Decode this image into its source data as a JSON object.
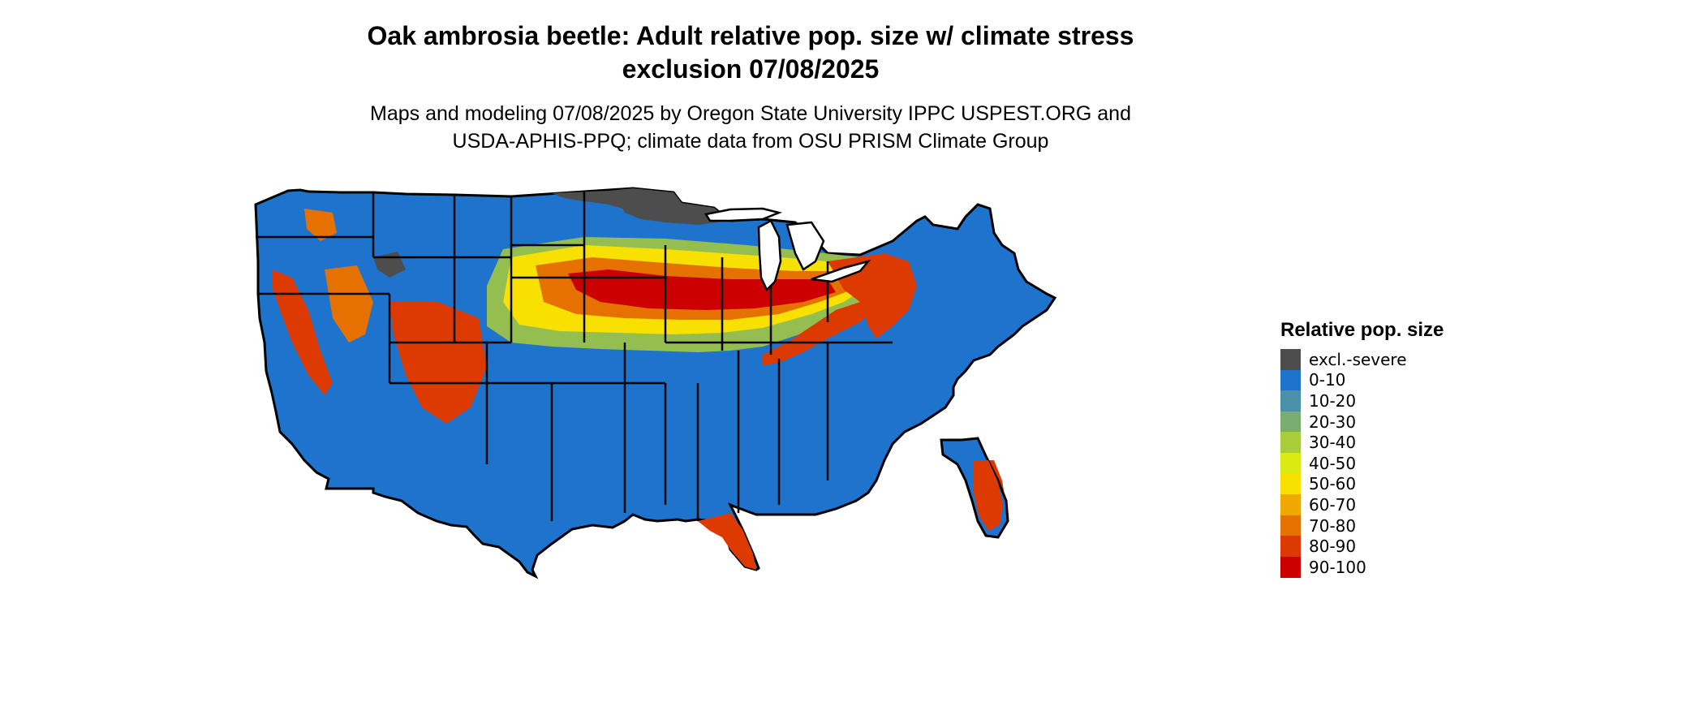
{
  "title_line1": "Oak ambrosia beetle: Adult relative pop. size w/ climate stress",
  "title_line2": "exclusion 07/08/2025",
  "subtitle_line1": "Maps and modeling 07/08/2025 by Oregon State University IPPC USPEST.ORG and",
  "subtitle_line2": "USDA-APHIS-PPQ; climate data from OSU PRISM Climate Group",
  "legend": {
    "title": "Relative pop. size",
    "items": [
      {
        "label": "excl.-severe",
        "color": "#4d4d4d"
      },
      {
        "label": "0-10",
        "color": "#1e73cd"
      },
      {
        "label": "10-20",
        "color": "#4a90a8"
      },
      {
        "label": "20-30",
        "color": "#7aae6e"
      },
      {
        "label": "30-40",
        "color": "#a9cd3a"
      },
      {
        "label": "40-50",
        "color": "#dbea12"
      },
      {
        "label": "50-60",
        "color": "#f8e000"
      },
      {
        "label": "60-70",
        "color": "#f0a800"
      },
      {
        "label": "70-80",
        "color": "#e57200"
      },
      {
        "label": "80-90",
        "color": "#dc3a00"
      },
      {
        "label": "90-100",
        "color": "#cc0000"
      }
    ]
  },
  "map": {
    "region": "Contiguous United States",
    "border_color": "#000000"
  }
}
